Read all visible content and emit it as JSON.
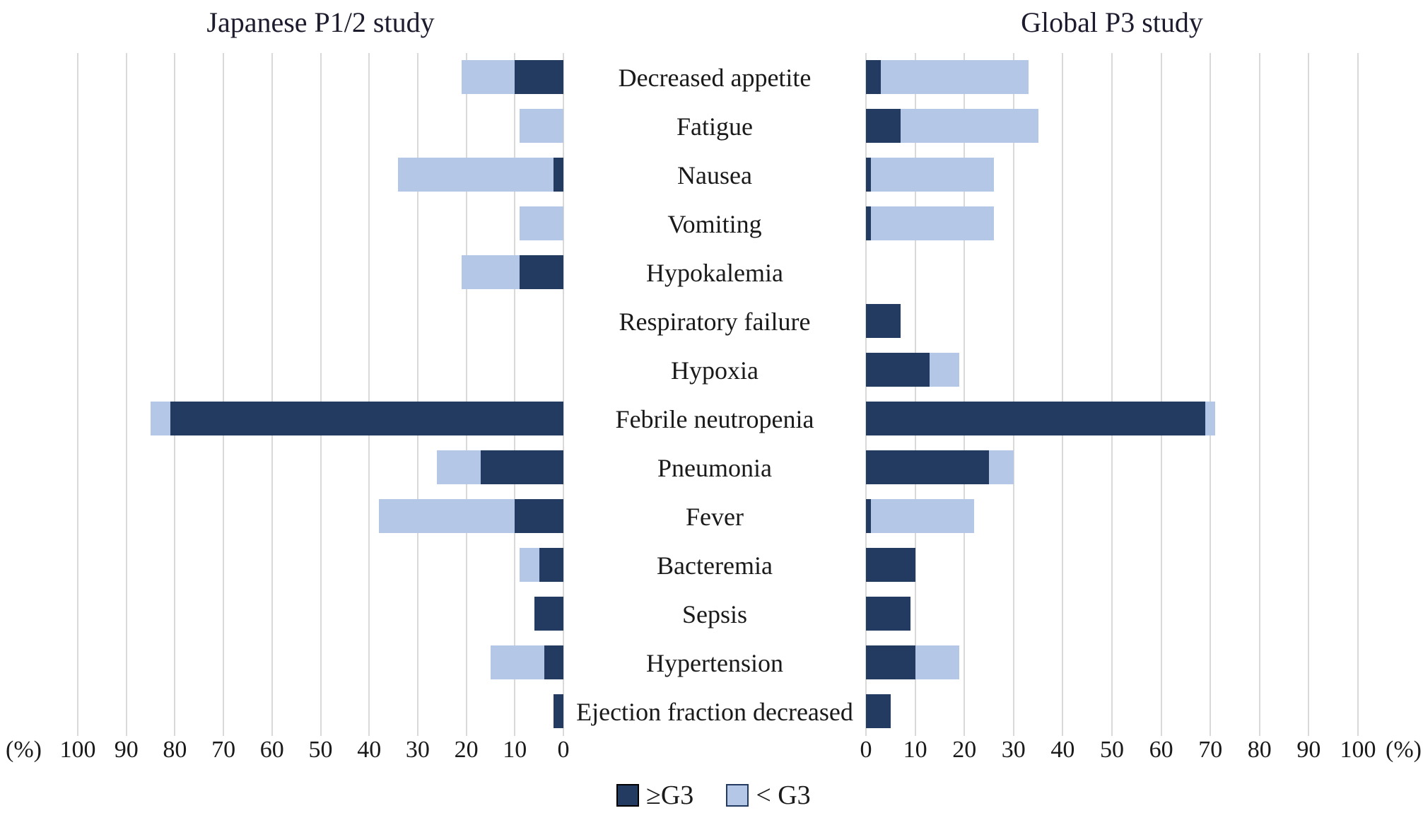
{
  "titles": {
    "left": "Japanese P1/2 study",
    "right": "Global P3 study"
  },
  "axes": {
    "percent_label": "(%)",
    "left_ticks": [
      "100",
      "90",
      "80",
      "70",
      "60",
      "50",
      "40",
      "30",
      "20",
      "10",
      "0"
    ],
    "right_ticks": [
      "0",
      "10",
      "20",
      "30",
      "40",
      "50",
      "60",
      "70",
      "80",
      "90",
      "100"
    ]
  },
  "legend": {
    "items": [
      {
        "label": "≥G3",
        "color": "#233A61",
        "border": "#000000"
      },
      {
        "label": "< G3",
        "color": "#B4C7E7",
        "border": "#233A61"
      }
    ]
  },
  "colors": {
    "ge_g3": "#233A61",
    "lt_g3": "#B4C7E7",
    "gridline": "#D9D9D9",
    "text": "#1a1a1a"
  },
  "chart_data": {
    "type": "bar",
    "subtype": "diverging-horizontal-stacked",
    "title_left": "Japanese P1/2 study",
    "title_right": "Global P3 study",
    "xlabel": "(%)",
    "xlim": [
      0,
      100
    ],
    "grid": true,
    "legend_position": "bottom-center",
    "categories": [
      "Decreased appetite",
      "Fatigue",
      "Nausea",
      "Vomiting",
      "Hypokalemia",
      "Respiratory failure",
      "Hypoxia",
      "Febrile neutropenia",
      "Pneumonia",
      "Fever",
      "Bacteremia",
      "Sepsis",
      "Hypertension",
      "Ejection fraction decreased"
    ],
    "series": [
      {
        "name": "Japanese P1/2 study ≥G3",
        "side": "left",
        "values": [
          10,
          0,
          2,
          0,
          9,
          0,
          0,
          81,
          17,
          10,
          5,
          6,
          4,
          2
        ]
      },
      {
        "name": "Japanese P1/2 study < G3",
        "side": "left",
        "values": [
          11,
          9,
          32,
          9,
          12,
          0,
          0,
          4,
          9,
          28,
          4,
          0,
          11,
          0
        ]
      },
      {
        "name": "Global P3 study ≥G3",
        "side": "right",
        "values": [
          3,
          7,
          1,
          1,
          0,
          7,
          13,
          69,
          25,
          1,
          10,
          9,
          10,
          5
        ]
      },
      {
        "name": "Global P3 study < G3",
        "side": "right",
        "values": [
          30,
          28,
          25,
          25,
          0,
          0,
          6,
          2,
          5,
          21,
          0,
          0,
          9,
          0
        ]
      }
    ]
  }
}
